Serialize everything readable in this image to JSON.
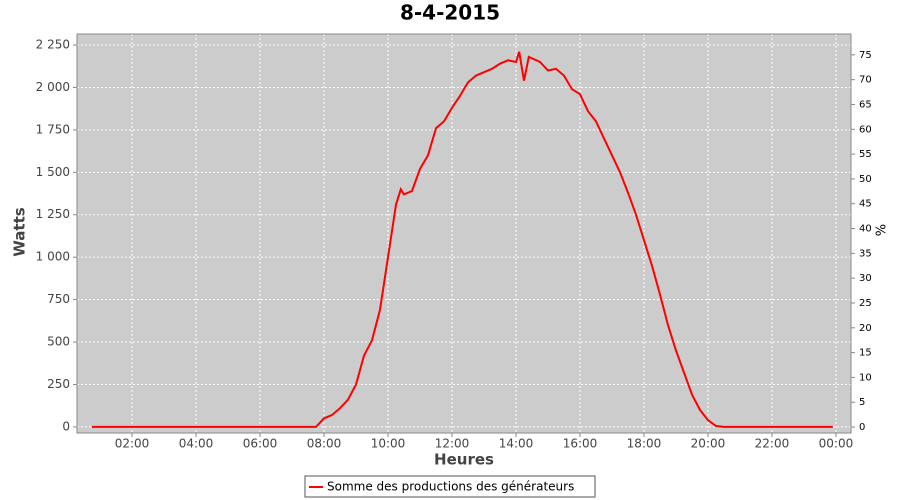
{
  "chart_data": {
    "type": "line",
    "title": "8-4-2015",
    "x_label": "Heures",
    "y_label": "Watts",
    "y2_label": "%",
    "x": [
      0.75,
      7.75,
      8.0,
      8.25,
      8.5,
      8.75,
      9.0,
      9.25,
      9.5,
      9.75,
      10.0,
      10.25,
      10.4,
      10.5,
      10.75,
      11.0,
      11.25,
      11.5,
      11.75,
      12.0,
      12.25,
      12.5,
      12.75,
      13.0,
      13.25,
      13.5,
      13.75,
      14.0,
      14.1,
      14.25,
      14.4,
      14.75,
      15.0,
      15.25,
      15.5,
      15.75,
      16.0,
      16.25,
      16.5,
      16.75,
      17.0,
      17.25,
      17.5,
      17.75,
      18.0,
      18.25,
      18.5,
      18.75,
      19.0,
      19.25,
      19.5,
      19.75,
      20.0,
      20.25,
      20.5,
      23.9
    ],
    "series": [
      {
        "name": "Somme des productions des  générateurs",
        "color": "#ff0000",
        "values": [
          0,
          0,
          50,
          70,
          110,
          160,
          250,
          420,
          510,
          690,
          1000,
          1310,
          1400,
          1370,
          1390,
          1520,
          1600,
          1760,
          1800,
          1880,
          1950,
          2030,
          2070,
          2090,
          2110,
          2140,
          2160,
          2150,
          2210,
          2040,
          2180,
          2150,
          2100,
          2110,
          2070,
          1990,
          1960,
          1860,
          1800,
          1700,
          1600,
          1500,
          1380,
          1250,
          1100,
          950,
          780,
          600,
          450,
          320,
          190,
          100,
          40,
          5,
          0,
          0
        ]
      }
    ],
    "xlim": [
      0.28,
      24.47
    ],
    "xticks": [
      {
        "value": 2,
        "label": "02:00"
      },
      {
        "value": 4,
        "label": "04:00"
      },
      {
        "value": 6,
        "label": "06:00"
      },
      {
        "value": 8,
        "label": "08:00"
      },
      {
        "value": 10,
        "label": "10:00"
      },
      {
        "value": 12,
        "label": "12:00"
      },
      {
        "value": 14,
        "label": "14:00"
      },
      {
        "value": 16,
        "label": "16:00"
      },
      {
        "value": 18,
        "label": "18:00"
      },
      {
        "value": 20,
        "label": "20:00"
      },
      {
        "value": 22,
        "label": "22:00"
      },
      {
        "value": 24,
        "label": "00:00"
      }
    ],
    "ylim": [
      -36,
      2315
    ],
    "yticks": [
      0,
      250,
      500,
      750,
      {
        "value": 1000,
        "label": "1 000"
      },
      {
        "value": 1250,
        "label": "1 250"
      },
      {
        "value": 1500,
        "label": "1 500"
      },
      {
        "value": 1750,
        "label": "1 750"
      },
      {
        "value": 2000,
        "label": "2 000"
      },
      {
        "value": 2250,
        "label": "2 250"
      }
    ],
    "y2lim": [
      -1.2,
      79.2
    ],
    "y2ticks": [
      0,
      5,
      10,
      15,
      20,
      25,
      30,
      35,
      40,
      45,
      50,
      55,
      60,
      65,
      70,
      75
    ],
    "grid": true
  }
}
